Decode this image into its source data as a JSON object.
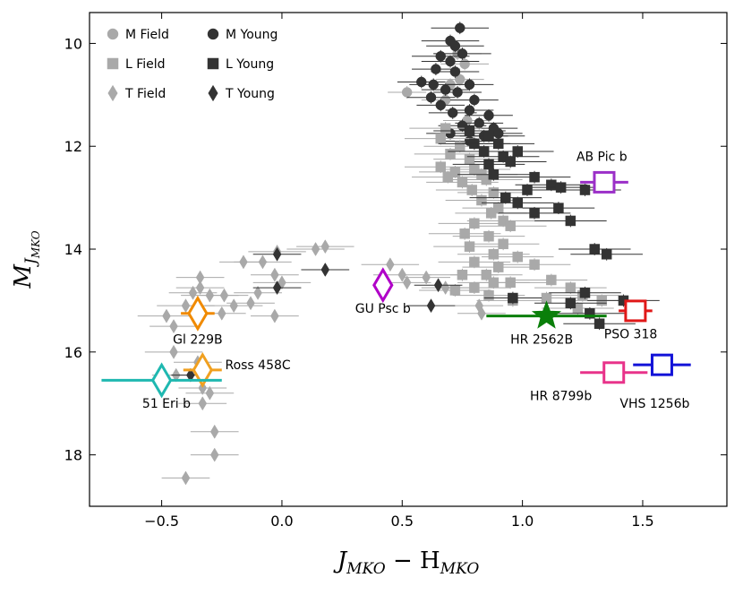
{
  "chart_data": {
    "type": "scatter",
    "title": "",
    "xlabel": {
      "main": "J",
      "sub1": "MKO",
      "mid": " − H",
      "sub2": "MKO"
    },
    "ylabel": {
      "main": "M",
      "sub1": "J",
      "sub2": "MKO"
    },
    "xlim": [
      -0.8,
      1.85
    ],
    "ylim": [
      19.0,
      9.4
    ],
    "y_inverted": true,
    "x_ticks": [
      -0.5,
      0.0,
      0.5,
      1.0,
      1.5
    ],
    "x_tick_labels": [
      "−0.5",
      "0.0",
      "0.5",
      "1.0",
      "1.5"
    ],
    "y_ticks": [
      10,
      12,
      14,
      16,
      18
    ],
    "y_tick_labels": [
      "10",
      "12",
      "14",
      "16",
      "18"
    ],
    "grid": false,
    "legend_position": "top-left",
    "legend": [
      {
        "label": "M Field",
        "marker": "circle",
        "color": "#a9a9a9"
      },
      {
        "label": "M Young",
        "marker": "circle",
        "color": "#333333"
      },
      {
        "label": "L Field",
        "marker": "square",
        "color": "#a9a9a9"
      },
      {
        "label": "L Young",
        "marker": "square",
        "color": "#333333"
      },
      {
        "label": "T Field",
        "marker": "diamond",
        "color": "#a9a9a9"
      },
      {
        "label": "T Young",
        "marker": "diamond",
        "color": "#333333"
      }
    ],
    "series": [
      {
        "name": "M Field",
        "marker": "circle",
        "color": "#a9a9a9",
        "points": [
          [
            0.73,
            10.2,
            0.1
          ],
          [
            0.76,
            10.4,
            0.1
          ],
          [
            0.7,
            10.8,
            0.1
          ],
          [
            0.68,
            11.1,
            0.1
          ],
          [
            0.74,
            10.7,
            0.1
          ],
          [
            0.52,
            10.95,
            0.08
          ],
          [
            0.77,
            11.5,
            0.1
          ]
        ]
      },
      {
        "name": "M Young",
        "marker": "circle",
        "color": "#333333",
        "points": [
          [
            0.74,
            9.7,
            0.12
          ],
          [
            0.7,
            9.95,
            0.12
          ],
          [
            0.72,
            10.05,
            0.12
          ],
          [
            0.66,
            10.25,
            0.12
          ],
          [
            0.7,
            10.35,
            0.12
          ],
          [
            0.75,
            10.2,
            0.12
          ],
          [
            0.64,
            10.5,
            0.1
          ],
          [
            0.72,
            10.55,
            0.1
          ],
          [
            0.58,
            10.75,
            0.1
          ],
          [
            0.63,
            10.8,
            0.1
          ],
          [
            0.68,
            10.9,
            0.1
          ],
          [
            0.78,
            10.8,
            0.1
          ],
          [
            0.73,
            10.95,
            0.1
          ],
          [
            0.62,
            11.05,
            0.1
          ],
          [
            0.66,
            11.2,
            0.1
          ],
          [
            0.8,
            11.1,
            0.1
          ],
          [
            0.71,
            11.35,
            0.1
          ],
          [
            0.78,
            11.3,
            0.1
          ],
          [
            0.86,
            11.4,
            0.1
          ],
          [
            0.82,
            11.55,
            0.1
          ],
          [
            0.75,
            11.6,
            0.1
          ],
          [
            0.88,
            11.65,
            0.1
          ],
          [
            0.9,
            11.75,
            0.1
          ],
          [
            0.84,
            11.8,
            0.1
          ],
          [
            0.7,
            11.75,
            0.1
          ],
          [
            0.78,
            11.9,
            0.1
          ]
        ]
      },
      {
        "name": "L Field",
        "marker": "square",
        "color": "#a9a9a9",
        "points": [
          [
            0.68,
            11.65,
            0.15
          ],
          [
            0.66,
            11.85,
            0.15
          ],
          [
            0.74,
            12.0,
            0.15
          ],
          [
            0.7,
            12.15,
            0.15
          ],
          [
            0.78,
            12.25,
            0.15
          ],
          [
            0.66,
            12.4,
            0.15
          ],
          [
            0.72,
            12.5,
            0.15
          ],
          [
            0.8,
            12.45,
            0.15
          ],
          [
            0.69,
            12.6,
            0.15
          ],
          [
            0.75,
            12.7,
            0.15
          ],
          [
            0.83,
            12.55,
            0.15
          ],
          [
            0.79,
            12.85,
            0.15
          ],
          [
            0.85,
            12.65,
            0.15
          ],
          [
            0.88,
            12.9,
            0.15
          ],
          [
            0.83,
            13.05,
            0.15
          ],
          [
            0.9,
            13.2,
            0.15
          ],
          [
            0.87,
            13.3,
            0.15
          ],
          [
            0.8,
            13.5,
            0.15
          ],
          [
            0.92,
            13.45,
            0.15
          ],
          [
            0.95,
            13.55,
            0.15
          ],
          [
            0.76,
            13.7,
            0.15
          ],
          [
            0.86,
            13.75,
            0.15
          ],
          [
            0.78,
            13.95,
            0.15
          ],
          [
            0.92,
            13.9,
            0.15
          ],
          [
            0.88,
            14.1,
            0.15
          ],
          [
            0.8,
            14.25,
            0.15
          ],
          [
            0.98,
            14.15,
            0.15
          ],
          [
            0.9,
            14.35,
            0.15
          ],
          [
            0.85,
            14.5,
            0.15
          ],
          [
            0.75,
            14.5,
            0.15
          ],
          [
            1.05,
            14.3,
            0.15
          ],
          [
            0.95,
            14.65,
            0.15
          ],
          [
            0.88,
            14.65,
            0.15
          ],
          [
            0.8,
            14.75,
            0.15
          ],
          [
            0.72,
            14.8,
            0.15
          ],
          [
            1.12,
            14.6,
            0.15
          ],
          [
            1.2,
            14.75,
            0.15
          ],
          [
            1.25,
            14.9,
            0.15
          ],
          [
            1.1,
            14.95,
            0.15
          ],
          [
            0.96,
            15.0,
            0.15
          ],
          [
            0.86,
            14.9,
            0.15
          ],
          [
            1.33,
            15.0,
            0.15
          ],
          [
            1.23,
            15.15,
            0.15
          ]
        ]
      },
      {
        "name": "L Young",
        "marker": "square",
        "color": "#333333",
        "points": [
          [
            0.78,
            11.7,
            0.15
          ],
          [
            0.86,
            11.8,
            0.15
          ],
          [
            0.8,
            11.95,
            0.15
          ],
          [
            0.9,
            11.95,
            0.15
          ],
          [
            0.84,
            12.1,
            0.15
          ],
          [
            0.92,
            12.2,
            0.15
          ],
          [
            0.98,
            12.1,
            0.15
          ],
          [
            0.86,
            12.35,
            0.15
          ],
          [
            0.95,
            12.3,
            0.15
          ],
          [
            0.88,
            12.55,
            0.15
          ],
          [
            1.05,
            12.6,
            0.15
          ],
          [
            1.12,
            12.75,
            0.15
          ],
          [
            1.16,
            12.8,
            0.15
          ],
          [
            1.26,
            12.85,
            0.15
          ],
          [
            1.02,
            12.85,
            0.15
          ],
          [
            0.93,
            13.0,
            0.15
          ],
          [
            0.98,
            13.1,
            0.15
          ],
          [
            1.15,
            13.2,
            0.15
          ],
          [
            1.05,
            13.3,
            0.15
          ],
          [
            1.2,
            13.45,
            0.15
          ],
          [
            1.3,
            14.0,
            0.15
          ],
          [
            1.35,
            14.1,
            0.15
          ],
          [
            1.26,
            14.85,
            0.15
          ],
          [
            1.2,
            15.05,
            0.15
          ],
          [
            1.28,
            15.25,
            0.15
          ],
          [
            1.32,
            15.45,
            0.15
          ],
          [
            1.42,
            15.0,
            0.15
          ],
          [
            0.96,
            14.95,
            0.12
          ]
        ]
      },
      {
        "name": "T Field",
        "marker": "diamond",
        "color": "#a9a9a9",
        "points": [
          [
            -0.48,
            15.3,
            0.12
          ],
          [
            -0.45,
            15.5,
            0.1
          ],
          [
            -0.4,
            15.1,
            0.12
          ],
          [
            -0.37,
            14.85,
            0.1
          ],
          [
            -0.3,
            14.9,
            0.12
          ],
          [
            -0.25,
            15.25,
            0.1
          ],
          [
            -0.2,
            15.1,
            0.12
          ],
          [
            -0.13,
            15.05,
            0.1
          ],
          [
            -0.1,
            14.85,
            0.1
          ],
          [
            -0.03,
            15.3,
            0.1
          ],
          [
            -0.03,
            14.5,
            0.1
          ],
          [
            -0.08,
            14.25,
            0.12
          ],
          [
            -0.02,
            14.05,
            0.12
          ],
          [
            0.14,
            14.0,
            0.12
          ],
          [
            0.18,
            13.95,
            0.12
          ],
          [
            0.0,
            14.65,
            0.12
          ],
          [
            -0.34,
            14.55,
            0.1
          ],
          [
            -0.34,
            14.75,
            0.1
          ],
          [
            -0.24,
            14.9,
            0.1
          ],
          [
            -0.45,
            16.0,
            0.12
          ],
          [
            -0.35,
            16.2,
            0.1
          ],
          [
            -0.33,
            16.7,
            0.1
          ],
          [
            -0.33,
            17.0,
            0.1
          ],
          [
            -0.3,
            16.8,
            0.1
          ],
          [
            -0.28,
            17.55,
            0.1
          ],
          [
            -0.28,
            18.0,
            0.1
          ],
          [
            -0.4,
            18.45,
            0.1
          ],
          [
            -0.44,
            16.45,
            0.1
          ],
          [
            0.45,
            14.3,
            0.12
          ],
          [
            0.5,
            14.5,
            0.12
          ],
          [
            0.52,
            14.65,
            0.1
          ],
          [
            0.6,
            14.55,
            0.1
          ],
          [
            0.68,
            14.75,
            0.1
          ],
          [
            0.82,
            15.1,
            0.1
          ],
          [
            0.83,
            15.25,
            0.1
          ],
          [
            -0.16,
            14.25,
            0.1
          ]
        ]
      },
      {
        "name": "T Young",
        "marker": "diamond",
        "color": "#333333",
        "points": [
          [
            -0.38,
            16.45,
            0.08
          ],
          [
            -0.02,
            14.1,
            0.1
          ],
          [
            -0.02,
            14.75,
            0.1
          ],
          [
            0.18,
            14.4,
            0.1
          ],
          [
            0.62,
            15.1,
            0.1
          ],
          [
            0.65,
            14.7,
            0.1
          ]
        ]
      }
    ],
    "highlights": [
      {
        "name": "AB Pic b",
        "x": 1.34,
        "y": 12.7,
        "xerr": 0.1,
        "marker": "open-square",
        "color": "#9b30c8",
        "label_pos": [
          1.33,
          12.2
        ]
      },
      {
        "name": "GU Psc b",
        "x": 0.42,
        "y": 14.7,
        "xerr": 0.0,
        "marker": "open-diamond",
        "color": "#b000c8",
        "label_pos": [
          0.42,
          15.15
        ]
      },
      {
        "name": "HR 2562B",
        "x": 1.1,
        "y": 15.3,
        "xerr": 0.25,
        "marker": "star",
        "color": "#0a7f0a",
        "label_pos": [
          1.08,
          15.75
        ]
      },
      {
        "name": "PSO 318",
        "x": 1.47,
        "y": 15.2,
        "xerr": 0.07,
        "marker": "open-square",
        "color": "#e01818",
        "label_pos": [
          1.45,
          15.65
        ]
      },
      {
        "name": "HR 8799b",
        "x": 1.38,
        "y": 16.4,
        "xerr": 0.14,
        "marker": "open-square",
        "color": "#e8338a",
        "label_pos": [
          1.16,
          16.85
        ]
      },
      {
        "name": "VHS 1256b",
        "x": 1.58,
        "y": 16.25,
        "xerr": 0.12,
        "marker": "open-square",
        "color": "#1212d8",
        "label_pos": [
          1.55,
          17.0
        ]
      },
      {
        "name": "Gl 229B",
        "x": -0.35,
        "y": 15.25,
        "xerr": 0.07,
        "marker": "open-diamond",
        "color": "#f08a00",
        "label_pos": [
          -0.35,
          15.75
        ]
      },
      {
        "name": "Ross 458C",
        "x": -0.33,
        "y": 16.35,
        "xerr": 0.08,
        "marker": "open-diamond",
        "color": "#f0a020",
        "label_pos": [
          -0.1,
          16.25
        ]
      },
      {
        "name": "51 Eri b",
        "x": -0.5,
        "y": 16.55,
        "xerr": 0.25,
        "marker": "open-diamond",
        "color": "#1fb8b0",
        "label_pos": [
          -0.48,
          17.0
        ]
      }
    ]
  }
}
